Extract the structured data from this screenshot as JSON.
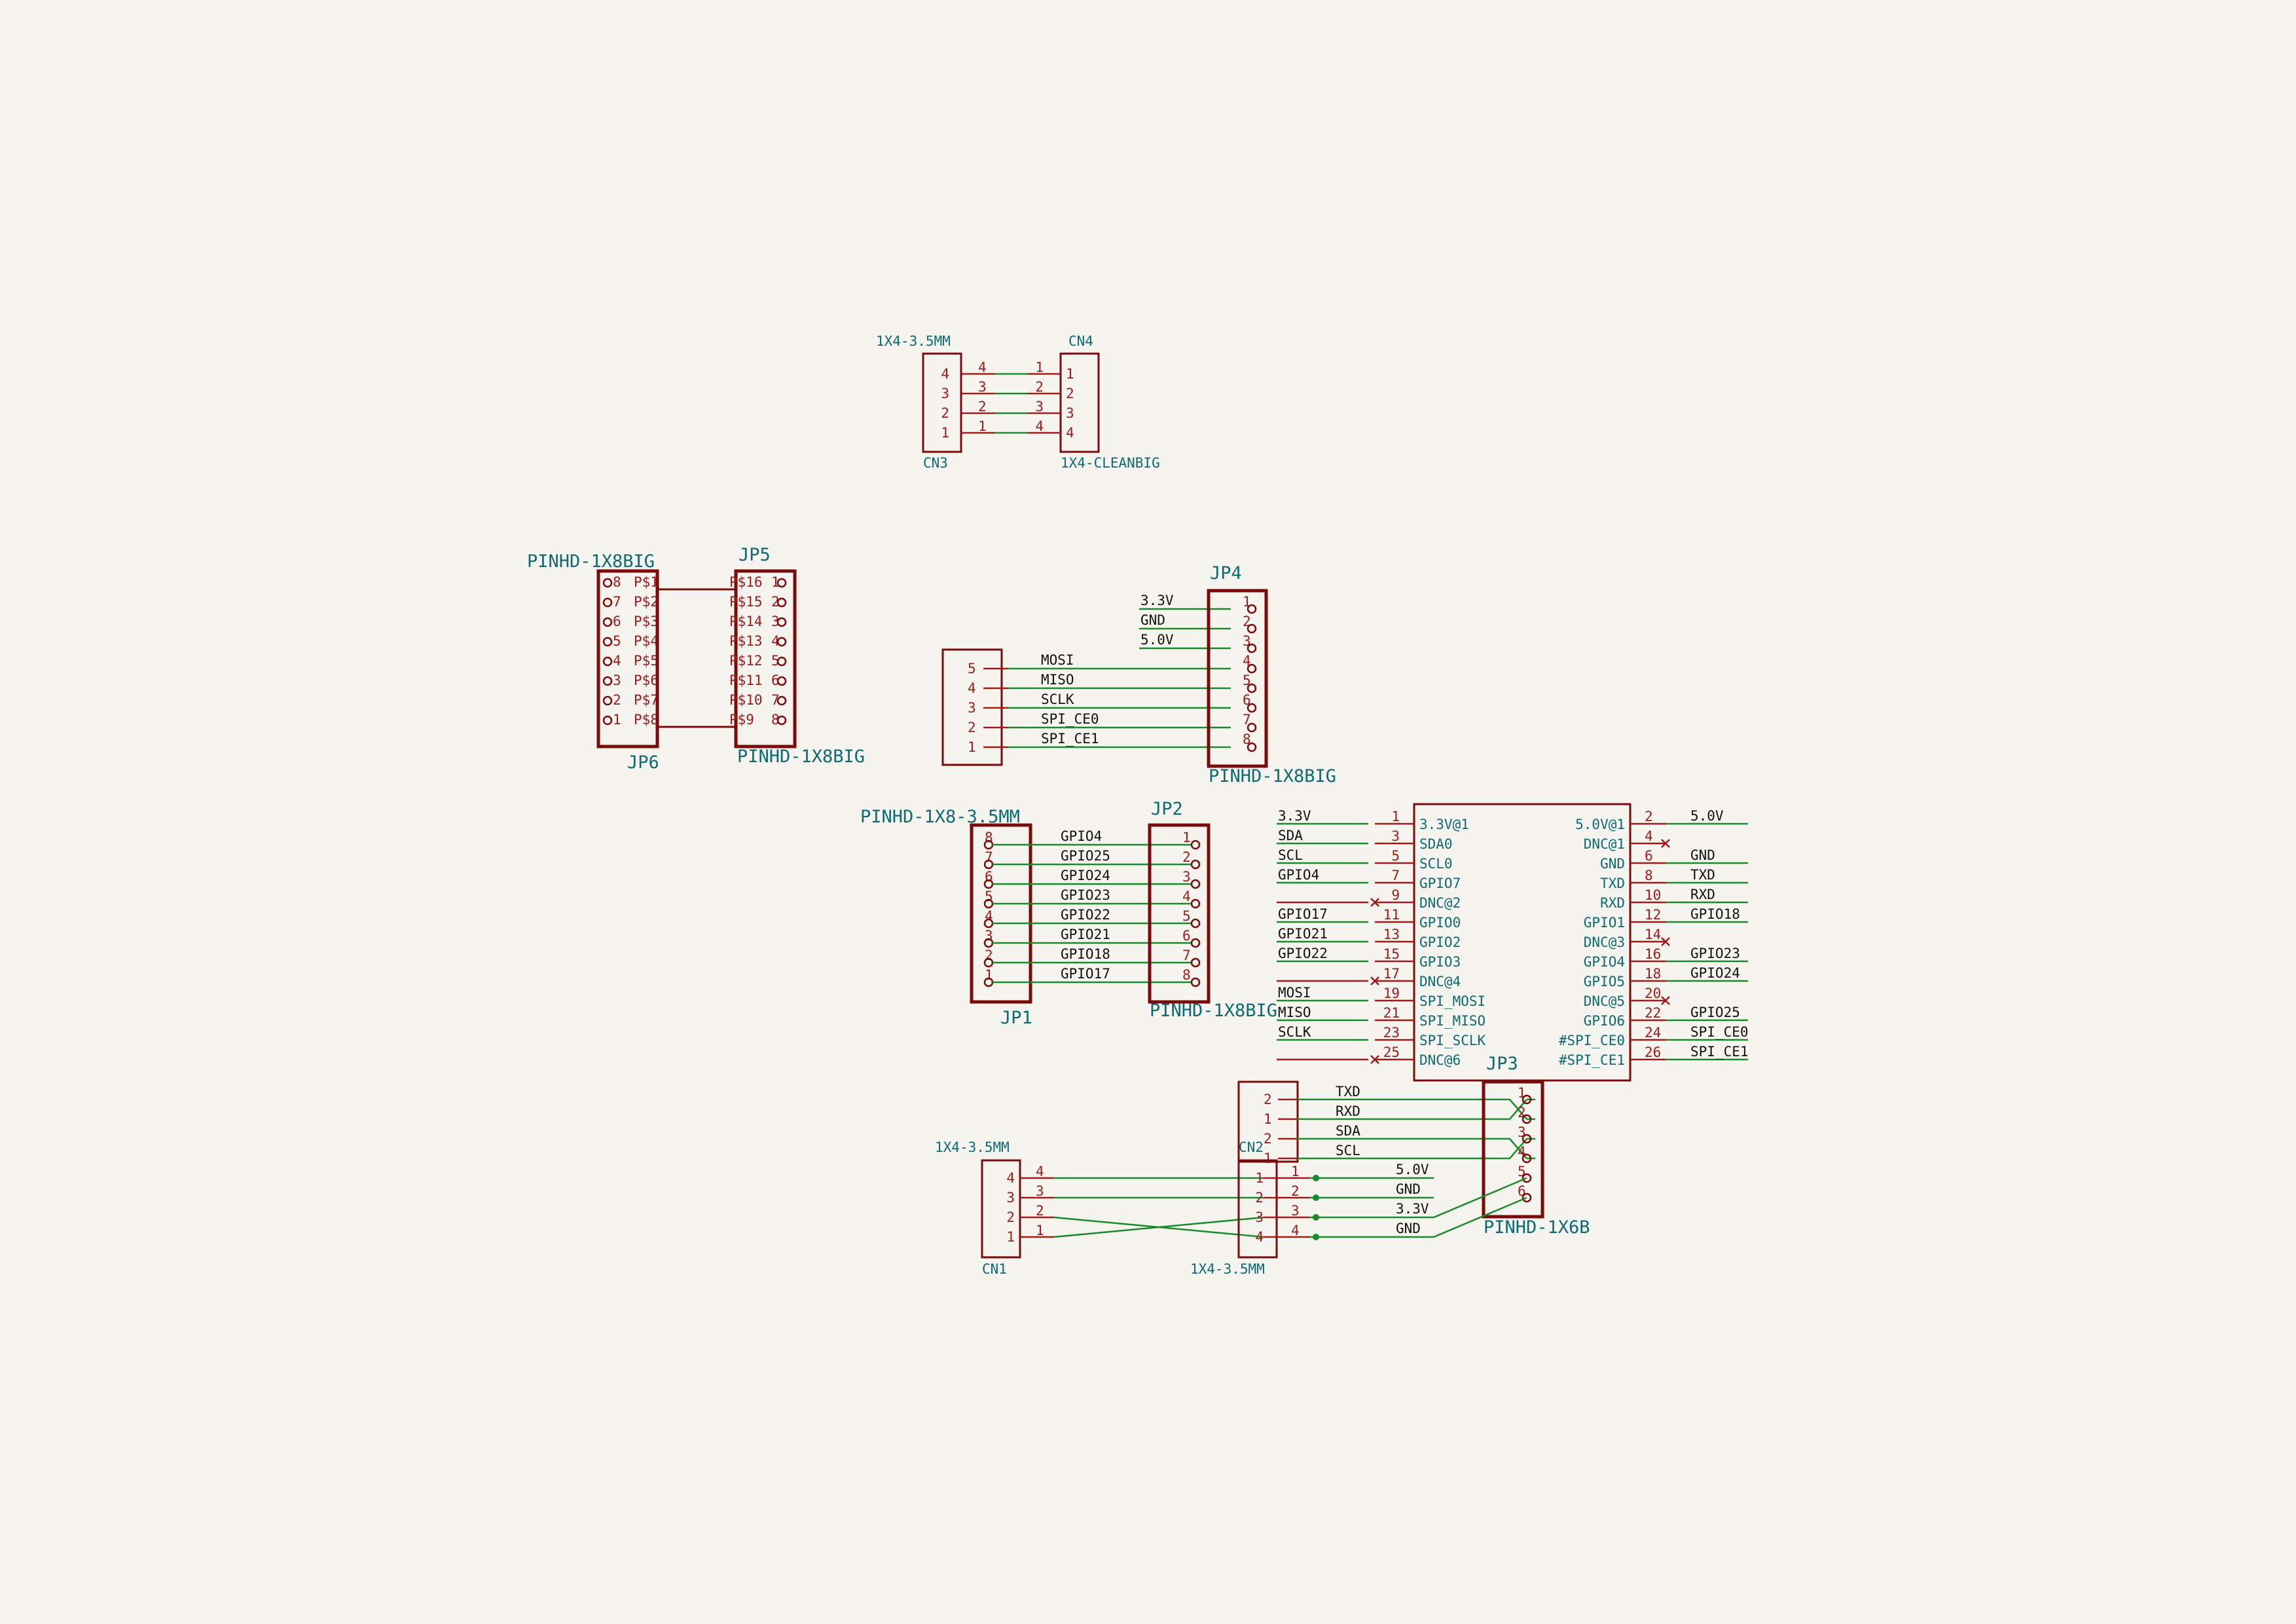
{
  "colors": {
    "background": "#f5f4ef",
    "component": "#7a0b0b",
    "pin": "#a01a1a",
    "wire": "#1b8a2a",
    "label": "#0e6a72",
    "net": "#111111"
  },
  "cn3": {
    "value": "1X4-3.5MM",
    "ref": "CN3",
    "pins": [
      "4",
      "3",
      "2",
      "1"
    ],
    "inner": [
      "4",
      "3",
      "2",
      "1"
    ]
  },
  "cn4": {
    "ref": "CN4",
    "value": "1X4-CLEANBIG",
    "pins": [
      "1",
      "2",
      "3",
      "4"
    ],
    "inner": [
      "1",
      "2",
      "3",
      "4"
    ]
  },
  "jp6": {
    "value": "PINHD-1X8BIG",
    "ref": "JP6",
    "pins": [
      "8",
      "7",
      "6",
      "5",
      "4",
      "3",
      "2",
      "1"
    ],
    "pads": [
      "P$1",
      "P$2",
      "P$3",
      "P$4",
      "P$5",
      "P$6",
      "P$7",
      "P$8"
    ]
  },
  "jp5": {
    "ref": "JP5",
    "value": "PINHD-1X8BIG",
    "pins": [
      "1",
      "2",
      "3",
      "4",
      "5",
      "6",
      "7",
      "8"
    ],
    "pads": [
      "P$16",
      "P$15",
      "P$14",
      "P$13",
      "P$12",
      "P$11",
      "P$10",
      "P$9"
    ]
  },
  "jp4": {
    "ref": "JP4",
    "value": "PINHD-1X8BIG",
    "nets": [
      "3.3V",
      "GND",
      "5.0V",
      "MOSI",
      "MISO",
      "SCLK",
      "SPI_CE0",
      "SPI_CE1"
    ],
    "pins": [
      "1",
      "2",
      "3",
      "4",
      "5",
      "6",
      "7",
      "8"
    ]
  },
  "conn5": {
    "pins": [
      "5",
      "4",
      "3",
      "2",
      "1"
    ]
  },
  "jp1": {
    "value": "PINHD-1X8-3.5MM",
    "ref": "JP1",
    "pins": [
      "8",
      "7",
      "6",
      "5",
      "4",
      "3",
      "2",
      "1"
    ],
    "nets": [
      "GPIO4",
      "GPIO25",
      "GPIO24",
      "GPIO23",
      "GPIO22",
      "GPIO21",
      "GPIO18",
      "GPIO17"
    ]
  },
  "jp2": {
    "ref": "JP2",
    "value": "PINHD-1X8BIG",
    "pins": [
      "1",
      "2",
      "3",
      "4",
      "5",
      "6",
      "7",
      "8"
    ]
  },
  "rpi": {
    "left": [
      {
        "net": "3.3V",
        "num": "1",
        "name": "3.3V@1"
      },
      {
        "net": "SDA",
        "num": "3",
        "name": "SDA0"
      },
      {
        "net": "SCL",
        "num": "5",
        "name": "SCL0"
      },
      {
        "net": "GPIO4",
        "num": "7",
        "name": "GPIO7"
      },
      {
        "net": "",
        "num": "9",
        "name": "DNC@2"
      },
      {
        "net": "GPIO17",
        "num": "11",
        "name": "GPIO0"
      },
      {
        "net": "GPIO21",
        "num": "13",
        "name": "GPIO2"
      },
      {
        "net": "GPIO22",
        "num": "15",
        "name": "GPIO3"
      },
      {
        "net": "",
        "num": "17",
        "name": "DNC@4"
      },
      {
        "net": "MOSI",
        "num": "19",
        "name": "SPI_MOSI"
      },
      {
        "net": "MISO",
        "num": "21",
        "name": "SPI_MISO"
      },
      {
        "net": "SCLK",
        "num": "23",
        "name": "SPI_SCLK"
      },
      {
        "net": "",
        "num": "25",
        "name": "DNC@6"
      }
    ],
    "right": [
      {
        "net": "5.0V",
        "num": "2",
        "name": "5.0V@1"
      },
      {
        "net": "",
        "num": "4",
        "name": "DNC@1"
      },
      {
        "net": "GND",
        "num": "6",
        "name": "GND"
      },
      {
        "net": "TXD",
        "num": "8",
        "name": "TXD"
      },
      {
        "net": "RXD",
        "num": "10",
        "name": "RXD"
      },
      {
        "net": "GPIO18",
        "num": "12",
        "name": "GPIO1"
      },
      {
        "net": "",
        "num": "14",
        "name": "DNC@3"
      },
      {
        "net": "GPIO23",
        "num": "16",
        "name": "GPIO4"
      },
      {
        "net": "GPIO24",
        "num": "18",
        "name": "GPIO5"
      },
      {
        "net": "",
        "num": "20",
        "name": "DNC@5"
      },
      {
        "net": "GPIO25",
        "num": "22",
        "name": "GPIO6"
      },
      {
        "net": "SPI_CE0",
        "num": "24",
        "name": "#SPI_CE0"
      },
      {
        "net": "SPI_CE1",
        "num": "26",
        "name": "#SPI_CE1"
      }
    ]
  },
  "cn2upper": {
    "pins": [
      "2",
      "1",
      "2",
      "1"
    ],
    "nets": [
      "TXD",
      "RXD",
      "SDA",
      "SCL"
    ]
  },
  "cn2": {
    "ref": "CN2",
    "value": "1X4-3.5MM",
    "pins": [
      "1",
      "2",
      "3",
      "4"
    ],
    "nets": [
      "5.0V",
      "GND",
      "3.3V",
      "GND"
    ]
  },
  "jp3": {
    "ref": "JP3",
    "value": "PINHD-1X6B",
    "pins": [
      "1",
      "2",
      "3",
      "4",
      "5",
      "6"
    ]
  },
  "cn1": {
    "value": "1X4-3.5MM",
    "ref": "CN1",
    "pins": [
      "4",
      "3",
      "2",
      "1"
    ],
    "inner": [
      "4",
      "3",
      "2",
      "1"
    ]
  }
}
